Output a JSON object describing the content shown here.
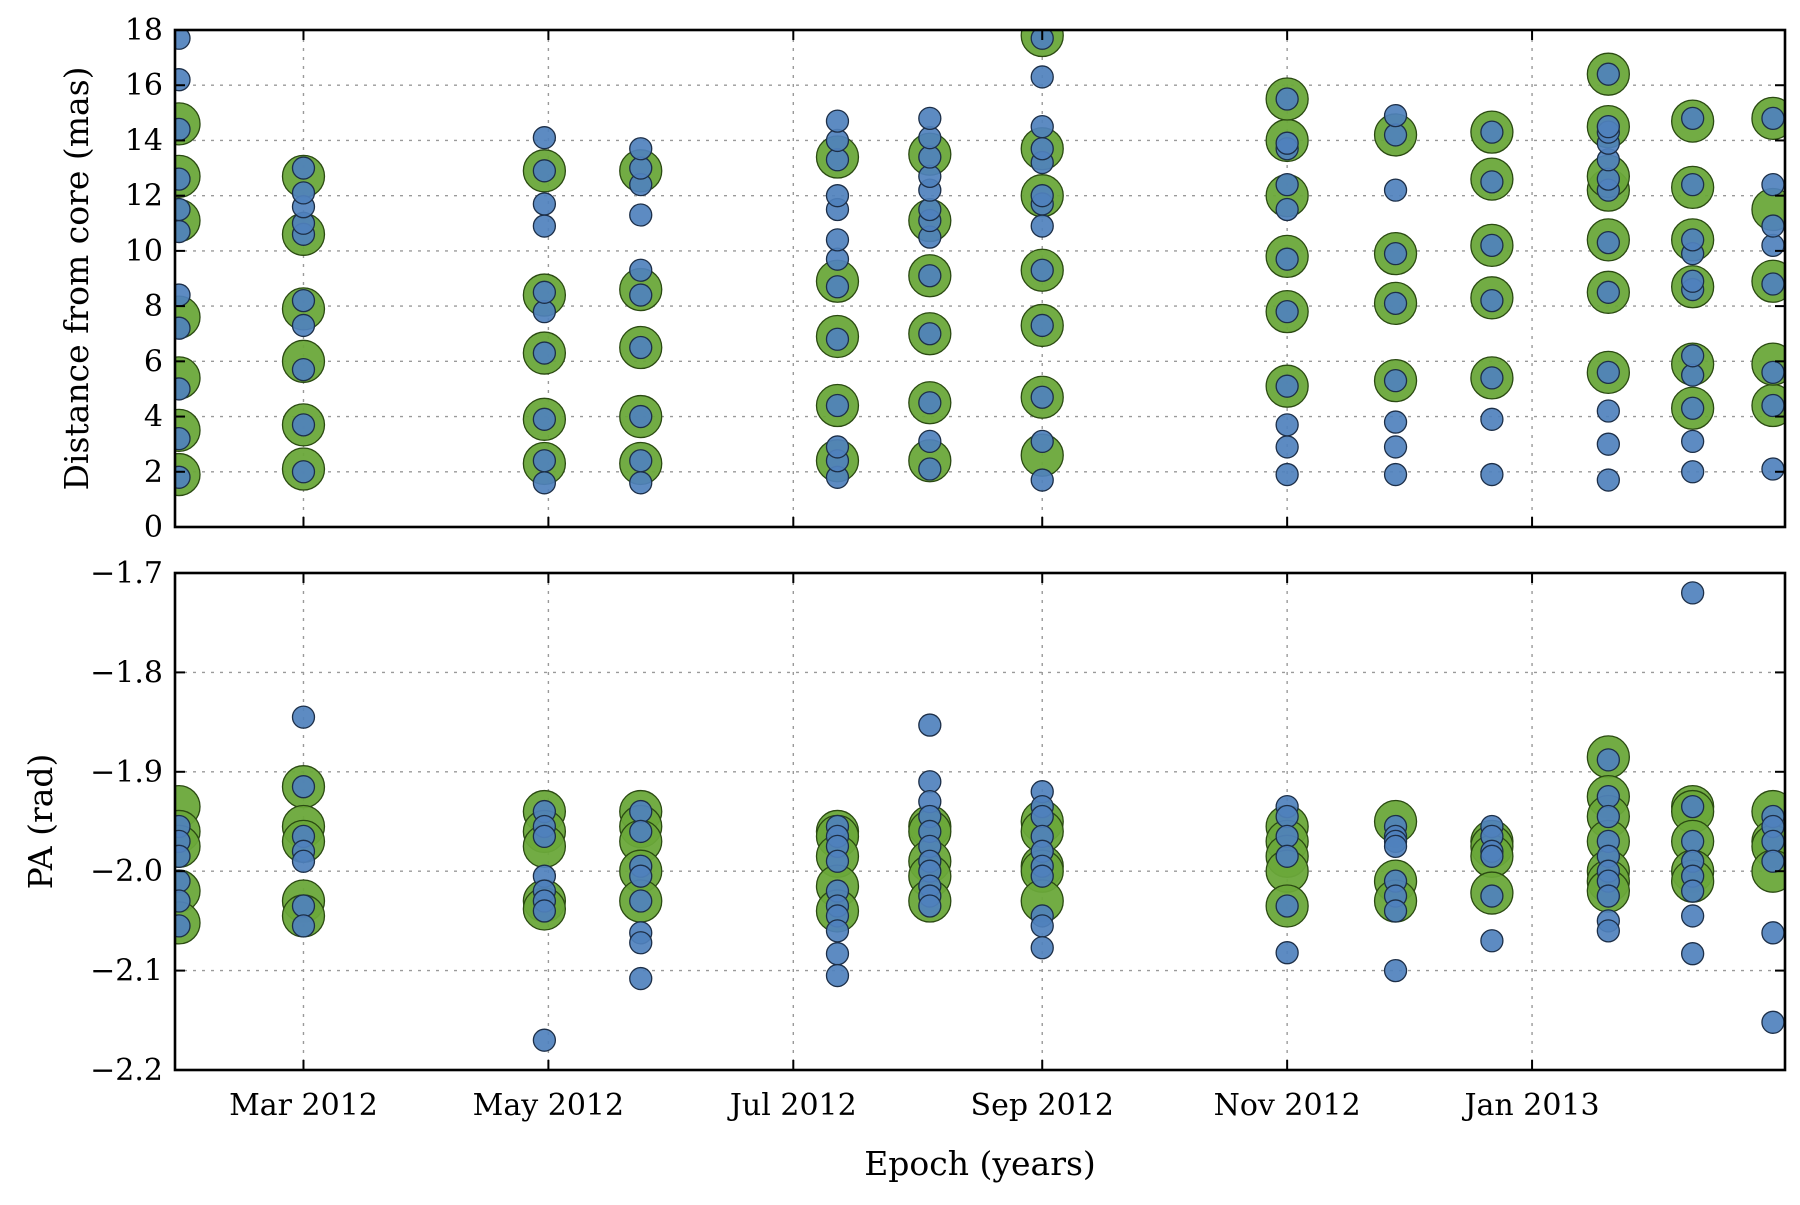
{
  "chart_data": [
    {
      "type": "scatter",
      "panel": "top",
      "title": "",
      "xlabel": "",
      "ylabel": "Distance from core (mas)",
      "ylim": [
        0,
        18
      ],
      "yticks": [
        "0",
        "2",
        "4",
        "6",
        "8",
        "10",
        "12",
        "14",
        "16",
        "18"
      ],
      "grid": true,
      "colors": {
        "big_fill": "#6aa83a",
        "big_stroke": "#2b4a12",
        "small_fill": "#4f81bd",
        "small_stroke": "#1d2f48"
      },
      "columns": [
        {
          "date": "2012-01-30",
          "big": [
            1.9,
            3.5,
            5.4,
            7.6,
            11.1,
            12.7,
            14.6
          ],
          "small": [
            1.8,
            3.2,
            5.0,
            7.2,
            8.4,
            10.7,
            11.5,
            12.6,
            14.4,
            16.2,
            17.7
          ]
        },
        {
          "date": "2012-03-01",
          "big": [
            2.1,
            3.7,
            6.0,
            7.9,
            10.6,
            12.7
          ],
          "small": [
            2.0,
            3.7,
            5.7,
            7.3,
            8.2,
            10.6,
            11.0,
            11.6,
            12.1,
            13.0
          ]
        },
        {
          "date": "2012-04-30",
          "big": [
            2.3,
            3.9,
            6.3,
            8.4,
            12.9
          ],
          "small": [
            1.6,
            2.4,
            3.9,
            6.3,
            7.8,
            8.5,
            10.9,
            11.7,
            12.9,
            14.1
          ]
        },
        {
          "date": "2012-05-24",
          "big": [
            2.3,
            4.0,
            6.5,
            8.6,
            12.9
          ],
          "small": [
            1.6,
            2.4,
            4.0,
            6.5,
            8.4,
            9.3,
            11.3,
            12.4,
            13.0,
            13.7
          ]
        },
        {
          "date": "2012-07-12",
          "big": [
            2.4,
            4.4,
            6.9,
            8.9,
            13.4
          ],
          "small": [
            1.8,
            2.4,
            2.9,
            4.4,
            6.8,
            8.7,
            9.7,
            10.4,
            11.5,
            12.0,
            13.3,
            14.0,
            14.7
          ]
        },
        {
          "date": "2012-08-04",
          "big": [
            2.4,
            4.5,
            7.0,
            9.1,
            11.1,
            13.5
          ],
          "small": [
            2.1,
            3.1,
            4.5,
            7.0,
            9.1,
            10.5,
            11.1,
            11.5,
            12.2,
            12.7,
            13.4,
            14.1,
            14.8
          ]
        },
        {
          "date": "2012-09-01",
          "big": [
            2.6,
            4.7,
            7.3,
            9.3,
            12.0,
            13.7,
            17.8
          ],
          "small": [
            1.7,
            3.1,
            4.7,
            7.3,
            9.3,
            10.9,
            11.7,
            12.0,
            13.2,
            13.7,
            14.5,
            16.3,
            17.7
          ]
        },
        {
          "date": "2012-11-01",
          "big": [
            5.1,
            7.8,
            9.8,
            12.0,
            14.0,
            15.5
          ],
          "small": [
            1.9,
            2.9,
            3.7,
            5.1,
            7.8,
            9.7,
            11.5,
            12.4,
            13.7,
            13.9,
            15.5
          ]
        },
        {
          "date": "2012-11-28",
          "big": [
            5.3,
            8.1,
            9.9,
            14.2
          ],
          "small": [
            1.9,
            2.9,
            3.8,
            5.3,
            8.1,
            9.9,
            12.2,
            14.2,
            14.9
          ]
        },
        {
          "date": "2012-12-22",
          "big": [
            5.4,
            8.3,
            10.2,
            12.6,
            14.3
          ],
          "small": [
            1.9,
            3.9,
            5.4,
            8.2,
            10.2,
            12.5,
            14.3
          ]
        },
        {
          "date": "2013-01-20",
          "big": [
            5.6,
            8.5,
            10.4,
            12.2,
            12.7,
            14.5,
            16.4
          ],
          "small": [
            1.7,
            3.0,
            4.2,
            5.6,
            8.5,
            10.3,
            12.2,
            12.6,
            13.3,
            13.9,
            14.3,
            14.5,
            16.4
          ]
        },
        {
          "date": "2013-02-10",
          "big": [
            4.3,
            5.9,
            8.7,
            10.4,
            12.3,
            14.7
          ],
          "small": [
            2.0,
            3.1,
            4.3,
            5.5,
            6.2,
            8.6,
            8.9,
            9.9,
            10.4,
            12.4,
            14.8
          ]
        },
        {
          "date": "2013-03-02",
          "big": [
            4.4,
            5.9,
            8.9,
            11.5,
            14.8
          ],
          "small": [
            2.1,
            4.4,
            5.6,
            8.8,
            10.2,
            10.9,
            12.4,
            14.8
          ]
        }
      ]
    },
    {
      "type": "scatter",
      "panel": "bottom",
      "title": "",
      "xlabel": "Epoch (years)",
      "ylabel": "PA (rad)",
      "ylim": [
        -2.2,
        -1.7
      ],
      "yticks": [
        "−2.2",
        "−2.1",
        "−2.0",
        "−1.9",
        "−1.8",
        "−1.7"
      ],
      "xticks": [
        {
          "date": "2012-03-01",
          "label": "Mar 2012"
        },
        {
          "date": "2012-05-01",
          "label": "May 2012"
        },
        {
          "date": "2012-07-01",
          "label": "Jul 2012"
        },
        {
          "date": "2012-09-01",
          "label": "Sep 2012"
        },
        {
          "date": "2012-11-01",
          "label": "Nov 2012"
        },
        {
          "date": "2013-01-01",
          "label": "Jan 2013"
        }
      ],
      "xlim": [
        "2012-01-29",
        "2013-03-05"
      ],
      "grid": true,
      "colors": {
        "big_fill": "#6aa83a",
        "big_stroke": "#2b4a12",
        "small_fill": "#4f81bd",
        "small_stroke": "#1d2f48"
      },
      "columns": [
        {
          "date": "2012-01-30",
          "big": [
            -1.935,
            -1.96,
            -1.975,
            -2.02,
            -2.052
          ],
          "small": [
            -1.955,
            -1.97,
            -1.985,
            -2.01,
            -2.03,
            -2.055
          ]
        },
        {
          "date": "2012-03-01",
          "big": [
            -1.915,
            -1.955,
            -1.97,
            -2.03,
            -2.045
          ],
          "small": [
            -1.845,
            -1.915,
            -1.965,
            -1.98,
            -1.99,
            -2.035,
            -2.055
          ]
        },
        {
          "date": "2012-04-30",
          "big": [
            -1.94,
            -1.96,
            -1.975,
            -2.03,
            -2.038
          ],
          "small": [
            -1.94,
            -1.955,
            -1.965,
            -2.005,
            -2.02,
            -2.03,
            -2.04,
            -2.17
          ]
        },
        {
          "date": "2012-05-24",
          "big": [
            -1.94,
            -1.955,
            -1.97,
            -2.0,
            -2.03
          ],
          "small": [
            -1.94,
            -1.96,
            -1.995,
            -2.005,
            -2.03,
            -2.062,
            -2.072,
            -2.108
          ]
        },
        {
          "date": "2012-07-12",
          "big": [
            -1.96,
            -1.965,
            -1.985,
            -2.015,
            -2.04
          ],
          "small": [
            -1.955,
            -1.965,
            -1.975,
            -1.99,
            -2.02,
            -2.035,
            -2.045,
            -2.06,
            -2.083,
            -2.105
          ]
        },
        {
          "date": "2012-08-04",
          "big": [
            -1.955,
            -1.96,
            -1.99,
            -2.005,
            -2.03
          ],
          "small": [
            -1.853,
            -1.91,
            -1.93,
            -1.945,
            -1.96,
            -1.975,
            -1.99,
            -2.0,
            -2.015,
            -2.025,
            -2.035
          ]
        },
        {
          "date": "2012-09-01",
          "big": [
            -1.95,
            -1.96,
            -1.995,
            -2.0,
            -2.03
          ],
          "small": [
            -1.92,
            -1.935,
            -1.945,
            -1.965,
            -1.98,
            -1.995,
            -2.005,
            -2.045,
            -2.055,
            -2.077
          ]
        },
        {
          "date": "2012-11-01",
          "big": [
            -1.955,
            -1.97,
            -1.985,
            -2.0,
            -2.035
          ],
          "small": [
            -1.935,
            -1.945,
            -1.965,
            -1.985,
            -2.035,
            -2.082
          ]
        },
        {
          "date": "2012-11-28",
          "big": [
            -1.95,
            -2.01,
            -2.03
          ],
          "small": [
            -1.955,
            -1.965,
            -1.97,
            -1.975,
            -2.01,
            -2.025,
            -2.04,
            -2.1
          ]
        },
        {
          "date": "2012-12-22",
          "big": [
            -1.97,
            -1.975,
            -1.985,
            -2.022
          ],
          "small": [
            -1.955,
            -1.965,
            -1.98,
            -1.985,
            -2.025,
            -2.07
          ]
        },
        {
          "date": "2013-01-20",
          "big": [
            -1.885,
            -1.925,
            -1.945,
            -1.97,
            -2.0,
            -2.01,
            -2.02
          ],
          "small": [
            -1.888,
            -1.925,
            -1.945,
            -1.97,
            -1.985,
            -2.0,
            -2.01,
            -2.025,
            -2.05,
            -2.06
          ]
        },
        {
          "date": "2013-02-10",
          "big": [
            -1.935,
            -1.94,
            -1.97,
            -2.0,
            -2.01
          ],
          "small": [
            -1.72,
            -1.935,
            -1.97,
            -1.99,
            -2.005,
            -2.02,
            -2.045,
            -2.083
          ]
        },
        {
          "date": "2013-03-02",
          "big": [
            -1.94,
            -1.97,
            -1.975,
            -2.0
          ],
          "small": [
            -1.945,
            -1.955,
            -1.97,
            -1.99,
            -2.062,
            -2.152
          ]
        }
      ]
    }
  ]
}
